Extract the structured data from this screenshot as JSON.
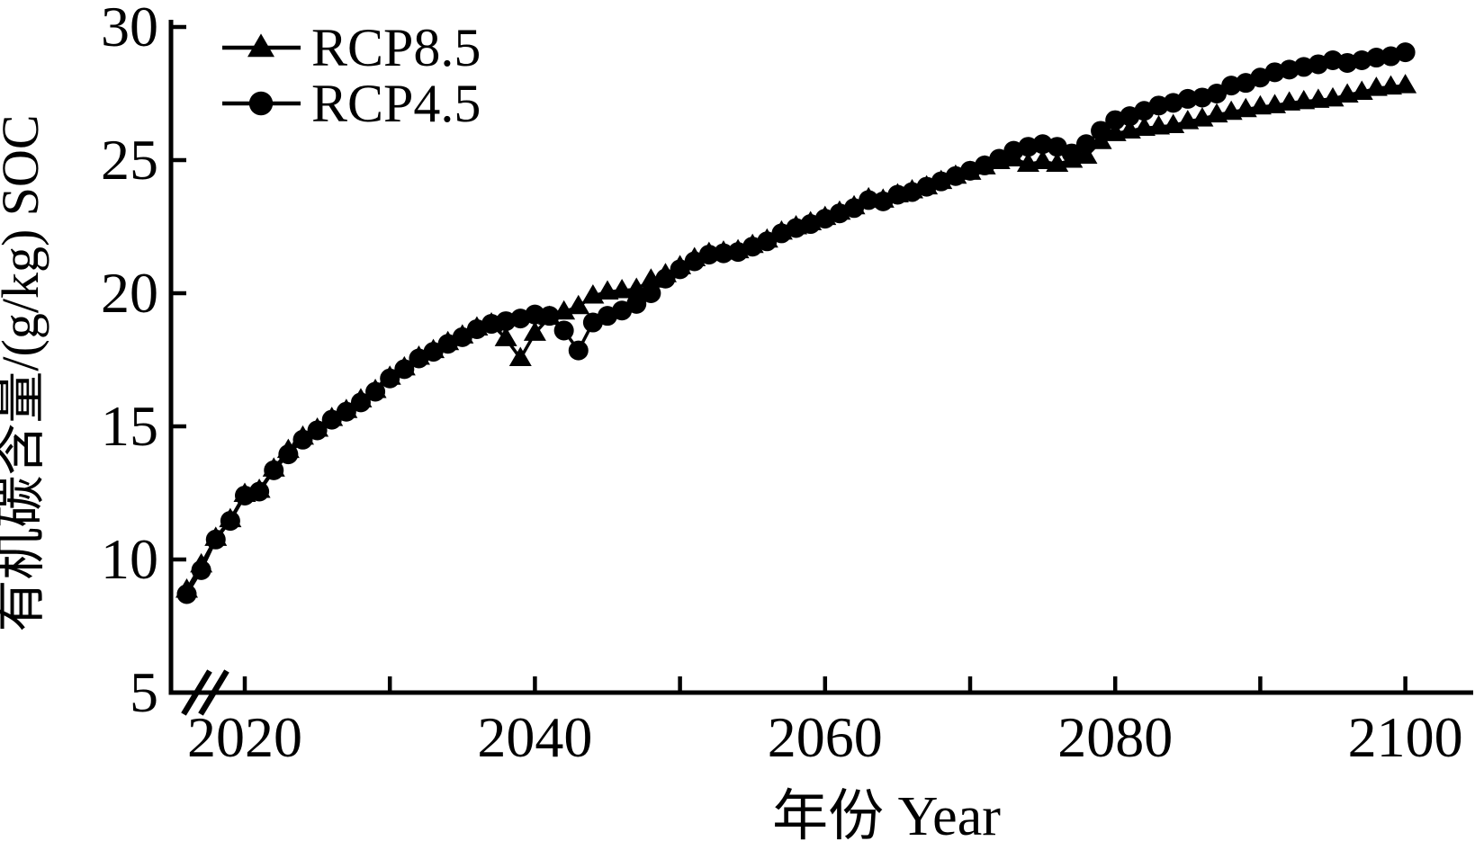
{
  "chart_data": {
    "type": "line",
    "title": "",
    "xlabel": "年份 Year",
    "ylabel": "有机碳含量/(g/kg) SOC",
    "colors": {
      "foreground": "#000000",
      "background": "#ffffff"
    },
    "grid": false,
    "axis_break_on_x": true,
    "x_axis": {
      "ticks": [
        2020,
        2030,
        2040,
        2050,
        2060,
        2070,
        2080,
        2090,
        2100
      ],
      "labeled_ticks": [
        "2020",
        "2040",
        "2060",
        "2080",
        "2100"
      ],
      "range": [
        2015,
        2103
      ]
    },
    "y_axis": {
      "ticks": [
        5,
        10,
        15,
        20,
        25,
        30
      ],
      "tick_labels": [
        "5",
        "10",
        "15",
        "20",
        "25",
        "30"
      ],
      "range": [
        5,
        30
      ]
    },
    "legend": {
      "position": "top-left",
      "entries": [
        {
          "label": "RCP8.5",
          "marker": "triangle"
        },
        {
          "label": "RCP4.5",
          "marker": "circle"
        }
      ]
    },
    "series": [
      {
        "name": "RCP8.5",
        "marker": "triangle",
        "x": [
          2016,
          2017,
          2018,
          2019,
          2020,
          2021,
          2022,
          2023,
          2024,
          2025,
          2026,
          2027,
          2028,
          2029,
          2030,
          2031,
          2032,
          2033,
          2034,
          2035,
          2036,
          2037,
          2038,
          2039,
          2040,
          2041,
          2042,
          2043,
          2044,
          2045,
          2046,
          2047,
          2048,
          2049,
          2050,
          2051,
          2052,
          2053,
          2054,
          2055,
          2056,
          2057,
          2058,
          2059,
          2060,
          2061,
          2062,
          2063,
          2064,
          2065,
          2066,
          2067,
          2068,
          2069,
          2070,
          2071,
          2072,
          2073,
          2074,
          2075,
          2076,
          2077,
          2078,
          2079,
          2080,
          2081,
          2082,
          2083,
          2084,
          2085,
          2086,
          2087,
          2088,
          2089,
          2090,
          2091,
          2092,
          2093,
          2094,
          2095,
          2096,
          2097,
          2098,
          2099,
          2100
        ],
        "values": [
          8.85,
          9.8,
          10.8,
          11.5,
          12.45,
          12.6,
          13.4,
          14.1,
          14.6,
          14.9,
          15.3,
          15.6,
          16.0,
          16.35,
          16.85,
          17.2,
          17.6,
          17.85,
          18.15,
          18.4,
          18.7,
          18.85,
          18.3,
          17.55,
          18.5,
          19.1,
          19.3,
          19.5,
          19.9,
          20.05,
          20.1,
          20.15,
          20.5,
          20.7,
          21.0,
          21.3,
          21.5,
          21.55,
          21.6,
          21.8,
          22.0,
          22.3,
          22.5,
          22.65,
          22.85,
          23.05,
          23.25,
          23.55,
          23.5,
          23.7,
          23.85,
          24.0,
          24.2,
          24.4,
          24.55,
          24.75,
          24.95,
          25.05,
          24.85,
          24.95,
          24.85,
          25.0,
          25.15,
          25.7,
          26.0,
          26.1,
          26.2,
          26.25,
          26.3,
          26.45,
          26.55,
          26.7,
          26.8,
          26.9,
          27.0,
          27.05,
          27.15,
          27.2,
          27.25,
          27.3,
          27.45,
          27.55,
          27.7,
          27.75,
          27.8
        ]
      },
      {
        "name": "RCP4.5",
        "marker": "circle",
        "x": [
          2016,
          2017,
          2018,
          2019,
          2020,
          2021,
          2022,
          2023,
          2024,
          2025,
          2026,
          2027,
          2028,
          2029,
          2030,
          2031,
          2032,
          2033,
          2034,
          2035,
          2036,
          2037,
          2038,
          2039,
          2040,
          2041,
          2042,
          2043,
          2044,
          2045,
          2046,
          2047,
          2048,
          2049,
          2050,
          2051,
          2052,
          2053,
          2054,
          2055,
          2056,
          2057,
          2058,
          2059,
          2060,
          2061,
          2062,
          2063,
          2064,
          2065,
          2066,
          2067,
          2068,
          2069,
          2070,
          2071,
          2072,
          2073,
          2074,
          2075,
          2076,
          2077,
          2078,
          2079,
          2080,
          2081,
          2082,
          2083,
          2084,
          2085,
          2086,
          2087,
          2088,
          2089,
          2090,
          2091,
          2092,
          2093,
          2094,
          2095,
          2096,
          2097,
          2098,
          2099,
          2100
        ],
        "values": [
          8.7,
          9.6,
          10.75,
          11.45,
          12.4,
          12.55,
          13.35,
          13.95,
          14.5,
          14.85,
          15.25,
          15.55,
          15.9,
          16.3,
          16.8,
          17.15,
          17.55,
          17.8,
          18.1,
          18.35,
          18.65,
          18.85,
          18.95,
          19.05,
          19.2,
          19.15,
          18.6,
          17.85,
          18.9,
          19.15,
          19.35,
          19.6,
          20.0,
          20.55,
          20.9,
          21.2,
          21.45,
          21.5,
          21.55,
          21.75,
          21.95,
          22.25,
          22.45,
          22.6,
          22.8,
          23.0,
          23.2,
          23.5,
          23.45,
          23.7,
          23.8,
          24.0,
          24.2,
          24.4,
          24.6,
          24.8,
          25.05,
          25.35,
          25.5,
          25.6,
          25.5,
          25.25,
          25.6,
          26.1,
          26.5,
          26.65,
          26.85,
          27.05,
          27.15,
          27.3,
          27.35,
          27.5,
          27.8,
          27.9,
          28.1,
          28.3,
          28.4,
          28.5,
          28.6,
          28.75,
          28.65,
          28.75,
          28.85,
          28.9,
          29.05
        ]
      }
    ]
  }
}
